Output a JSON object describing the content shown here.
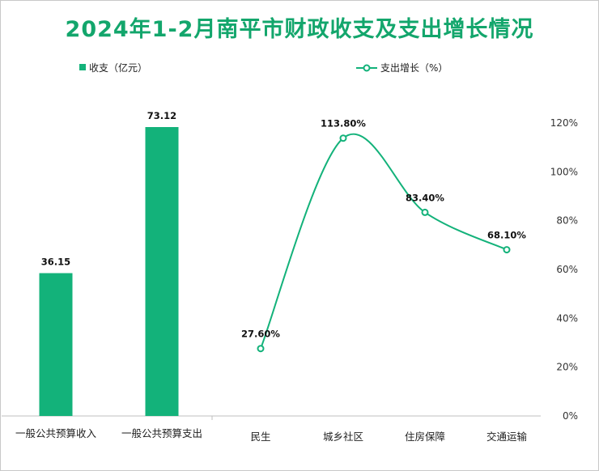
{
  "title": "2024年1-2月南平市财政收支及支出增长情况",
  "colors": {
    "accent": "#13b27a",
    "title": "#13a66c",
    "axis": "#bfbfbf"
  },
  "chart_data": [
    {
      "type": "bar",
      "legend": "收支（亿元）",
      "categories": [
        "一般公共预算收入",
        "一般公共预算支出"
      ],
      "values": [
        36.15,
        73.12
      ],
      "value_labels": [
        "36.15",
        "73.12"
      ],
      "ylim": [
        0,
        80
      ]
    },
    {
      "type": "line",
      "legend": "支出增长（%）",
      "categories": [
        "民生",
        "城乡社区",
        "住房保障",
        "交通运输"
      ],
      "values": [
        27.6,
        113.8,
        83.4,
        68.1
      ],
      "value_labels": [
        "27.60%",
        "113.80%",
        "83.40%",
        "68.10%"
      ],
      "ylim": [
        0,
        120
      ],
      "yticks": [
        "0%",
        "20%",
        "40%",
        "60%",
        "80%",
        "100%",
        "120%"
      ],
      "y_axis_side": "right"
    }
  ]
}
